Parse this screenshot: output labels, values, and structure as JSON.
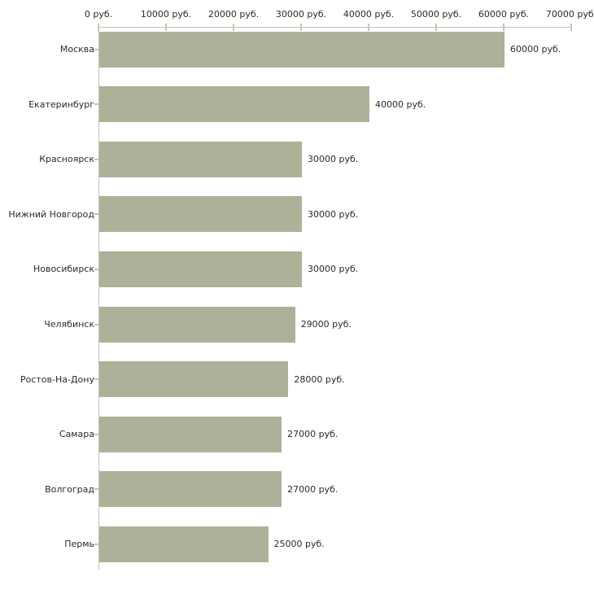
{
  "chart_data": {
    "type": "bar",
    "orientation": "horizontal",
    "title": "",
    "categories": [
      "Москва",
      "Екатеринбург",
      "Красноярск",
      "Нижний Новгород",
      "Новосибирск",
      "Челябинск",
      "Ростов-На-Дону",
      "Самара",
      "Волгоград",
      "Пермь"
    ],
    "values": [
      60000,
      40000,
      30000,
      30000,
      30000,
      29000,
      28000,
      27000,
      27000,
      25000
    ],
    "value_labels": [
      "60000 руб.",
      "40000 руб.",
      "30000 руб.",
      "30000 руб.",
      "30000 руб.",
      "29000 руб.",
      "28000 руб.",
      "27000 руб.",
      "27000 руб.",
      "25000 руб."
    ],
    "x_tick_values": [
      0,
      10000,
      20000,
      30000,
      40000,
      50000,
      60000,
      70000
    ],
    "x_tick_labels": [
      "0 руб.",
      "10000 руб.",
      "20000 руб.",
      "30000 руб.",
      "40000 руб.",
      "50000 руб.",
      "60000 руб.",
      "70000 руб."
    ],
    "xlim": [
      0,
      70000
    ],
    "unit": "руб.",
    "grid": false,
    "legend": false,
    "colors": {
      "bar": "#ACB198",
      "axis": "#C3C3C3",
      "tick": "#C9C9A3",
      "text": "#2B2B2B",
      "background": "#FFFFFF"
    }
  }
}
